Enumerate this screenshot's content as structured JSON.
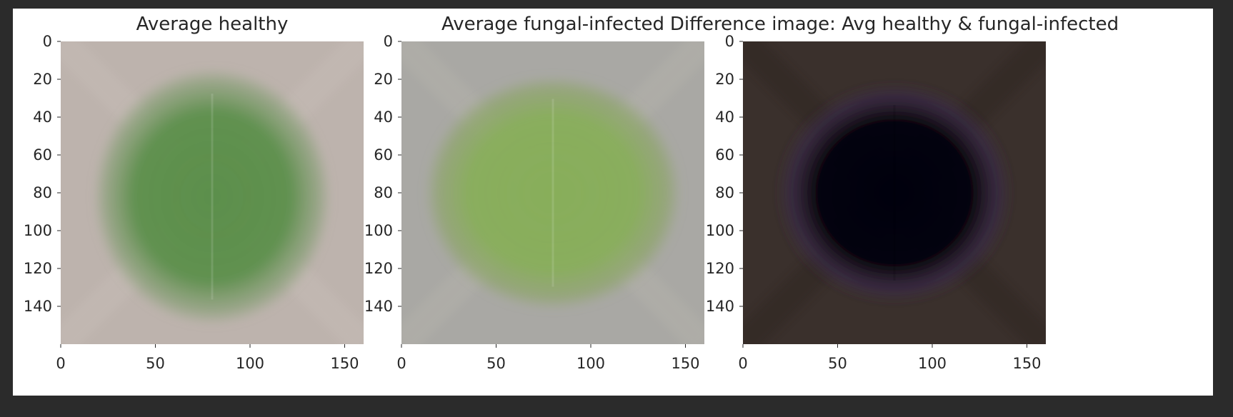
{
  "colors": {
    "page_background": "#2b2b2b",
    "figure_background": "#ffffff",
    "text": "#262626"
  },
  "chart_data": [
    {
      "type": "heatmap",
      "title": "Average healthy",
      "xlabel": "",
      "ylabel": "",
      "xlim": [
        0,
        160
      ],
      "ylim": [
        160,
        0
      ],
      "x_ticks": [
        0,
        50,
        100,
        150
      ],
      "y_ticks": [
        0,
        20,
        40,
        60,
        80,
        100,
        120,
        140
      ],
      "grid": false,
      "image_description_colors": {
        "background": "#bdb3ad",
        "blob_outer": "#8aa079",
        "blob_center": "#5c8f4b",
        "leaf_center": [
          80,
          82
        ],
        "leaf_radius": [
          63,
          68
        ]
      }
    },
    {
      "type": "heatmap",
      "title": "Average fungal-infected",
      "xlabel": "",
      "ylabel": "",
      "xlim": [
        0,
        160
      ],
      "ylim": [
        160,
        0
      ],
      "x_ticks": [
        0,
        50,
        100,
        150
      ],
      "y_ticks": [
        0,
        20,
        40,
        60,
        80,
        100,
        120,
        140
      ],
      "grid": false,
      "image_description_colors": {
        "background": "#a9a8a4",
        "blob_outer": "#8fa56d",
        "blob_center": "#88ae5a",
        "leaf_center": [
          80,
          80
        ],
        "leaf_radius": [
          68,
          62
        ]
      }
    },
    {
      "type": "heatmap",
      "title": "Difference image: Avg healthy & fungal-infected",
      "xlabel": "",
      "ylabel": "",
      "xlim": [
        0,
        160
      ],
      "ylim": [
        160,
        0
      ],
      "x_ticks": [
        0,
        50,
        100,
        150
      ],
      "y_ticks": [
        0,
        20,
        40,
        60,
        80,
        100,
        120,
        140
      ],
      "grid": false,
      "image_description_colors": {
        "background": "#3a302c",
        "blob_outer": "#3a2a48",
        "blob_center": "#050308",
        "leaf_center": [
          80,
          80
        ],
        "leaf_radius": [
          62,
          58
        ]
      }
    }
  ]
}
